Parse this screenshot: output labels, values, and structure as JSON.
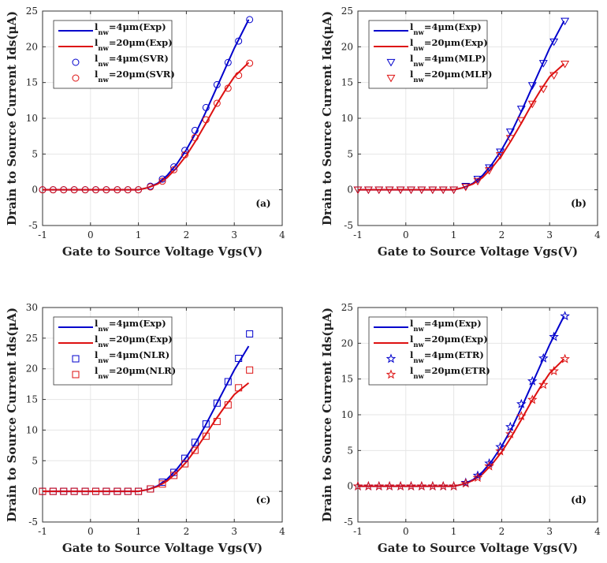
{
  "colors": {
    "blue": "#0000cc",
    "red": "#dd1111",
    "grid": "#e6e6e6",
    "axis": "#333333"
  },
  "chart_data": [
    {
      "type": "line",
      "panel_label": "(a)",
      "xlabel": "Gate to Source Voltage Vgs(V)",
      "ylabel": "Drain to Source Current Ids(μA)",
      "xlim": [
        -1,
        4
      ],
      "ylim": [
        -5,
        25
      ],
      "xticks": [
        "-1",
        "0",
        "1",
        "2",
        "3",
        "4"
      ],
      "yticks": [
        "-5",
        "0",
        "5",
        "10",
        "15",
        "20",
        "25"
      ],
      "grid": true,
      "legend_position": "top-left",
      "marker": "circle",
      "series": [
        {
          "name": "l_nw=4μm(Exp)",
          "legend_main": "l",
          "legend_sub": "nw",
          "legend_rest": "=4μm(Exp)",
          "style": "line",
          "color": "blue",
          "x": [
            -1,
            1.0,
            1.2,
            1.4,
            1.6,
            1.8,
            2.0,
            2.2,
            2.4,
            2.6,
            2.8,
            3.0,
            3.3
          ],
          "y": [
            0,
            0,
            0.3,
            0.9,
            2.0,
            3.6,
            5.6,
            8.0,
            10.8,
            13.8,
            16.8,
            19.8,
            23.8
          ]
        },
        {
          "name": "l_nw=20μm(Exp)",
          "legend_main": "l",
          "legend_sub": "nw",
          "legend_rest": "=20μm(Exp)",
          "style": "line",
          "color": "red",
          "x": [
            -1,
            1.0,
            1.2,
            1.4,
            1.6,
            1.8,
            2.0,
            2.2,
            2.4,
            2.6,
            2.8,
            3.0,
            3.3
          ],
          "y": [
            0,
            0,
            0.3,
            0.8,
            1.7,
            3.1,
            4.8,
            6.9,
            9.2,
            11.6,
            13.8,
            15.8,
            17.8
          ]
        },
        {
          "name": "l_nw=4μm(SVR)",
          "legend_main": "l",
          "legend_sub": "nw",
          "legend_rest": "=4μm(SVR)",
          "style": "marker",
          "color": "blue",
          "x": [
            -1,
            -0.78,
            -0.56,
            -0.34,
            -0.11,
            0.11,
            0.33,
            0.56,
            0.78,
            1.0,
            1.25,
            1.5,
            1.74,
            1.97,
            2.18,
            2.41,
            2.64,
            2.87,
            3.09,
            3.32
          ],
          "y": [
            0,
            0,
            0,
            0,
            0,
            0,
            0,
            0,
            0,
            0,
            0.5,
            1.5,
            3.2,
            5.5,
            8.3,
            11.5,
            14.7,
            17.8,
            20.8,
            23.8
          ]
        },
        {
          "name": "l_nw=20μm(SVR)",
          "legend_main": "l",
          "legend_sub": "nw",
          "legend_rest": "=20μm(SVR)",
          "style": "marker",
          "color": "red",
          "x": [
            -1,
            -0.78,
            -0.56,
            -0.34,
            -0.11,
            0.11,
            0.33,
            0.56,
            0.78,
            1.0,
            1.25,
            1.5,
            1.74,
            1.97,
            2.18,
            2.41,
            2.64,
            2.87,
            3.09,
            3.32
          ],
          "y": [
            0,
            0,
            0,
            0,
            0,
            0,
            0,
            0,
            0,
            0,
            0.4,
            1.2,
            2.8,
            4.9,
            7.3,
            9.8,
            12.1,
            14.2,
            16.0,
            17.7
          ]
        }
      ]
    },
    {
      "type": "line",
      "panel_label": "(b)",
      "xlabel": "Gate to Source Voltage Vgs(V)",
      "ylabel": "Drain to Source Current Ids(μA)",
      "xlim": [
        -1,
        4
      ],
      "ylim": [
        -5,
        25
      ],
      "xticks": [
        "-1",
        "0",
        "1",
        "2",
        "3",
        "4"
      ],
      "yticks": [
        "-5",
        "0",
        "5",
        "10",
        "15",
        "20",
        "25"
      ],
      "grid": true,
      "legend_position": "top-left",
      "marker": "triangle-down",
      "series": [
        {
          "name": "l_nw=4μm(Exp)",
          "legend_main": "l",
          "legend_sub": "nw",
          "legend_rest": "=4μm(Exp)",
          "style": "line",
          "color": "blue",
          "x": [
            -1,
            1.0,
            1.2,
            1.4,
            1.6,
            1.8,
            2.0,
            2.2,
            2.4,
            2.6,
            2.8,
            3.0,
            3.3
          ],
          "y": [
            0,
            0,
            0.3,
            0.9,
            2.0,
            3.6,
            5.6,
            8.0,
            10.8,
            13.8,
            16.8,
            19.8,
            23.6
          ]
        },
        {
          "name": "l_nw=20μm(Exp)",
          "legend_main": "l",
          "legend_sub": "nw",
          "legend_rest": "=20μm(Exp)",
          "style": "line",
          "color": "red",
          "x": [
            -1,
            1.0,
            1.2,
            1.4,
            1.6,
            1.8,
            2.0,
            2.2,
            2.4,
            2.6,
            2.8,
            3.0,
            3.3
          ],
          "y": [
            0,
            0,
            0.3,
            0.8,
            1.7,
            3.1,
            4.8,
            6.9,
            9.2,
            11.6,
            13.8,
            15.8,
            17.6
          ]
        },
        {
          "name": "l_nw=4μm(MLP)",
          "legend_main": "l",
          "legend_sub": "nw",
          "legend_rest": "=4μm(MLP)",
          "style": "marker",
          "color": "blue",
          "x": [
            -1,
            -0.78,
            -0.56,
            -0.34,
            -0.11,
            0.11,
            0.33,
            0.56,
            0.78,
            1.0,
            1.25,
            1.5,
            1.74,
            1.97,
            2.18,
            2.41,
            2.64,
            2.87,
            3.09,
            3.32
          ],
          "y": [
            0,
            0,
            0,
            0,
            0,
            0,
            0,
            0,
            0,
            0,
            0.5,
            1.5,
            3.1,
            5.3,
            8.1,
            11.3,
            14.6,
            17.7,
            20.7,
            23.6
          ]
        },
        {
          "name": "l_nw=20μm(MLP)",
          "legend_main": "l",
          "legend_sub": "nw",
          "legend_rest": "=20μm(MLP)",
          "style": "marker",
          "color": "red",
          "x": [
            -1,
            -0.78,
            -0.56,
            -0.34,
            -0.11,
            0.11,
            0.33,
            0.56,
            0.78,
            1.0,
            1.25,
            1.5,
            1.74,
            1.97,
            2.18,
            2.41,
            2.64,
            2.87,
            3.09,
            3.32
          ],
          "y": [
            0,
            0,
            0,
            0,
            0,
            0,
            0,
            0,
            0,
            0,
            0.4,
            1.2,
            2.7,
            4.8,
            7.2,
            9.7,
            12.0,
            14.1,
            16.0,
            17.6
          ]
        }
      ]
    },
    {
      "type": "line",
      "panel_label": "(c)",
      "xlabel": "Gate to Source Voltage Vgs(V)",
      "ylabel": "Drain to Source Current Ids(μA)",
      "xlim": [
        -1,
        4
      ],
      "ylim": [
        -5,
        30
      ],
      "xticks": [
        "-1",
        "0",
        "1",
        "2",
        "3",
        "4"
      ],
      "yticks": [
        "-5",
        "0",
        "5",
        "10",
        "15",
        "20",
        "25",
        "30"
      ],
      "grid": true,
      "legend_position": "top-left",
      "marker": "square",
      "series": [
        {
          "name": "l_nw=4μm(Exp)",
          "legend_main": "l",
          "legend_sub": "nw",
          "legend_rest": "=4μm(Exp)",
          "style": "line",
          "color": "blue",
          "x": [
            -1,
            1.0,
            1.2,
            1.4,
            1.6,
            1.8,
            2.0,
            2.2,
            2.4,
            2.6,
            2.8,
            3.0,
            3.3
          ],
          "y": [
            0,
            0,
            0.3,
            0.9,
            2.0,
            3.6,
            5.6,
            8.0,
            10.8,
            13.8,
            16.8,
            19.8,
            23.7
          ]
        },
        {
          "name": "l_nw=20μm(Exp)",
          "legend_main": "l",
          "legend_sub": "nw",
          "legend_rest": "=20μm(Exp)",
          "style": "line",
          "color": "red",
          "x": [
            -1,
            1.0,
            1.2,
            1.4,
            1.6,
            1.8,
            2.0,
            2.2,
            2.4,
            2.6,
            2.8,
            3.0,
            3.3
          ],
          "y": [
            0,
            0,
            0.3,
            0.8,
            1.7,
            3.1,
            4.8,
            6.9,
            9.2,
            11.6,
            13.8,
            15.8,
            17.7
          ]
        },
        {
          "name": "l_nw=4μm(NLR)",
          "legend_main": "l",
          "legend_sub": "nw",
          "legend_rest": "=4μm(NLR)",
          "style": "marker",
          "color": "blue",
          "x": [
            -1,
            -0.78,
            -0.56,
            -0.34,
            -0.11,
            0.11,
            0.33,
            0.56,
            0.78,
            1.0,
            1.25,
            1.5,
            1.74,
            1.97,
            2.18,
            2.41,
            2.64,
            2.87,
            3.09,
            3.32
          ],
          "y": [
            0,
            0,
            0,
            0,
            0,
            0,
            0,
            0,
            0,
            0,
            0.4,
            1.5,
            3.1,
            5.4,
            8.0,
            11.0,
            14.4,
            17.9,
            21.7,
            25.7
          ]
        },
        {
          "name": "l_nw=20μm(NLR)",
          "legend_main": "l",
          "legend_sub": "nw",
          "legend_rest": "=20μm(NLR)",
          "style": "marker",
          "color": "red",
          "x": [
            -1,
            -0.78,
            -0.56,
            -0.34,
            -0.11,
            0.11,
            0.33,
            0.56,
            0.78,
            1.0,
            1.25,
            1.5,
            1.74,
            1.97,
            2.18,
            2.41,
            2.64,
            2.87,
            3.09,
            3.32
          ],
          "y": [
            0,
            0,
            0,
            0,
            0,
            0,
            0,
            0,
            0,
            0,
            0.4,
            1.2,
            2.6,
            4.5,
            6.7,
            9.0,
            11.4,
            14.1,
            16.9,
            19.8
          ]
        }
      ]
    },
    {
      "type": "line",
      "panel_label": "(d)",
      "xlabel": "Gate to Source Voltage Vgs(V)",
      "ylabel": "Drain to Source Current Ids(μA)",
      "xlim": [
        -1,
        4
      ],
      "ylim": [
        -5,
        25
      ],
      "xticks": [
        "-1",
        "0",
        "1",
        "2",
        "3",
        "4"
      ],
      "yticks": [
        "-5",
        "0",
        "5",
        "10",
        "15",
        "20",
        "25"
      ],
      "grid": true,
      "legend_position": "top-left",
      "marker": "star",
      "series": [
        {
          "name": "l_nw=4μm(Exp)",
          "legend_main": "l",
          "legend_sub": "nw",
          "legend_rest": "=4μm(Exp)",
          "style": "line",
          "color": "blue",
          "x": [
            -1,
            1.0,
            1.2,
            1.4,
            1.6,
            1.8,
            2.0,
            2.2,
            2.4,
            2.6,
            2.8,
            3.0,
            3.3
          ],
          "y": [
            0,
            0,
            0.3,
            0.9,
            2.0,
            3.6,
            5.6,
            8.0,
            10.8,
            13.8,
            16.8,
            19.8,
            23.8
          ]
        },
        {
          "name": "l_nw=20μm(Exp)",
          "legend_main": "l",
          "legend_sub": "nw",
          "legend_rest": "=20μm(Exp)",
          "style": "line",
          "color": "red",
          "x": [
            -1,
            1.0,
            1.2,
            1.4,
            1.6,
            1.8,
            2.0,
            2.2,
            2.4,
            2.6,
            2.8,
            3.0,
            3.3
          ],
          "y": [
            0,
            0,
            0.3,
            0.8,
            1.7,
            3.1,
            4.8,
            6.9,
            9.2,
            11.6,
            13.8,
            15.8,
            17.8
          ]
        },
        {
          "name": "l_nw=4μm(ETR)",
          "legend_main": "l",
          "legend_sub": "nw",
          "legend_rest": "=4μm(ETR)",
          "style": "marker",
          "color": "blue",
          "x": [
            -1,
            -0.78,
            -0.56,
            -0.34,
            -0.11,
            0.11,
            0.33,
            0.56,
            0.78,
            1.0,
            1.25,
            1.5,
            1.74,
            1.97,
            2.18,
            2.41,
            2.64,
            2.87,
            3.09,
            3.32
          ],
          "y": [
            0,
            0,
            0,
            0,
            0,
            0,
            0,
            0,
            0,
            0,
            0.5,
            1.5,
            3.2,
            5.5,
            8.3,
            11.5,
            14.7,
            17.9,
            20.9,
            23.8
          ]
        },
        {
          "name": "l_nw=20μm(ETR)",
          "legend_main": "l",
          "legend_sub": "nw",
          "legend_rest": "=20μm(ETR)",
          "style": "marker",
          "color": "red",
          "x": [
            -1,
            -0.78,
            -0.56,
            -0.34,
            -0.11,
            0.11,
            0.33,
            0.56,
            0.78,
            1.0,
            1.25,
            1.5,
            1.74,
            1.97,
            2.18,
            2.41,
            2.64,
            2.87,
            3.09,
            3.32
          ],
          "y": [
            0,
            0,
            0,
            0,
            0,
            0,
            0,
            0,
            0,
            0,
            0.4,
            1.2,
            2.8,
            4.9,
            7.3,
            9.8,
            12.1,
            14.2,
            16.1,
            17.8
          ]
        }
      ]
    }
  ]
}
